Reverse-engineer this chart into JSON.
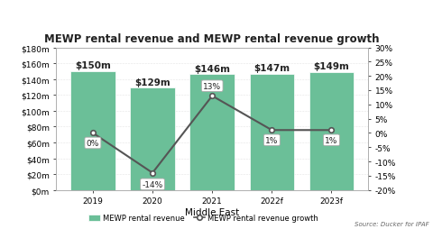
{
  "title": "MEWP rental revenue and MEWP rental revenue growth",
  "xlabel": "Middle East",
  "categories": [
    "2019",
    "2020",
    "2021",
    "2022f",
    "2023f"
  ],
  "bar_values": [
    150,
    129,
    146,
    147,
    149
  ],
  "bar_labels": [
    "$150m",
    "$129m",
    "$146m",
    "$147m",
    "$149m"
  ],
  "growth_values": [
    0,
    -14,
    13,
    1,
    1
  ],
  "growth_labels": [
    "0%",
    "-14%",
    "13%",
    "1%",
    "1%"
  ],
  "bar_color": "#6bbf98",
  "line_color": "#555555",
  "bar_ylim": [
    0,
    180
  ],
  "bar_yticks": [
    0,
    20,
    40,
    60,
    80,
    100,
    120,
    140,
    160,
    180
  ],
  "bar_yticklabels": [
    "$0m",
    "$20m",
    "$40m",
    "$60m",
    "$80m",
    "$100m",
    "$120m",
    "$140m",
    "$160m",
    "$180m"
  ],
  "right_ylim": [
    -20,
    30
  ],
  "right_yticks": [
    -20,
    -15,
    -10,
    -5,
    0,
    5,
    10,
    15,
    20,
    25,
    30
  ],
  "right_yticklabels": [
    "-20%",
    "-15%",
    "-10%",
    "-5%",
    "0%",
    "5%",
    "10%",
    "15%",
    "20%",
    "25%",
    "30%"
  ],
  "source_text": "Source: Ducker for IPAF",
  "legend_bar_label": "MEWP rental revenue",
  "legend_line_label": "MEWP rental revenue growth",
  "bg_color": "#ffffff",
  "font_size": 7.5,
  "title_font_size": 8.5,
  "label_font_size": 7.5,
  "growth_label_font_size": 6.5
}
